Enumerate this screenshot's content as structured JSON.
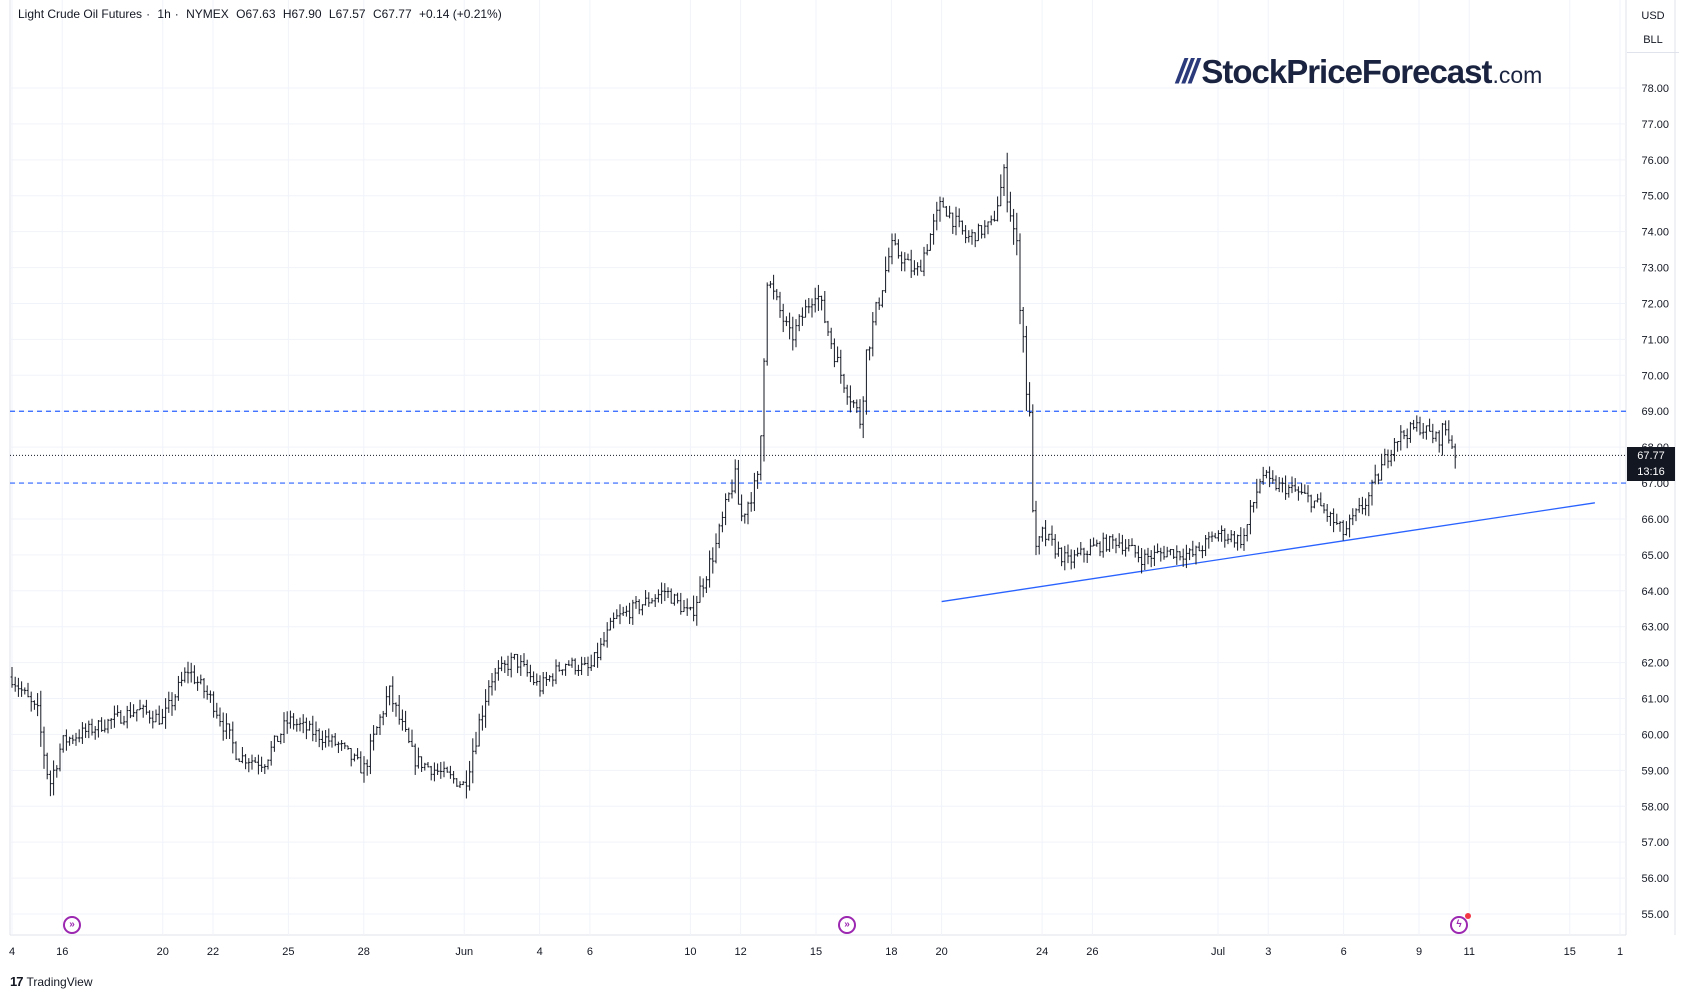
{
  "legend": {
    "symbol": "Light Crude Oil Futures",
    "interval": "1h",
    "exchange": "NYMEX",
    "open": "O67.63",
    "high": "H67.90",
    "low": "L67.57",
    "close": "C67.77",
    "change": "+0.14 (+0.21%)"
  },
  "units": {
    "currency": "USD",
    "unit": "BLL"
  },
  "logo": {
    "bars": "///",
    "name": "StockPriceForecast",
    "tld": ".com"
  },
  "current_price": {
    "value": "67.77",
    "countdown": "13:16"
  },
  "branding": {
    "icon": "tradingview-logo-icon",
    "text": "TradingView"
  },
  "events": [
    {
      "icon": "earnings-arrow-icon"
    },
    {
      "icon": "earnings-arrow-icon"
    },
    {
      "icon": "lightning-icon"
    }
  ],
  "colors": {
    "candle": "#131722",
    "level_line": "#2962ff",
    "trendline": "#2962ff",
    "grid": "#f0f3fa",
    "event": "#9c27b0"
  },
  "chart_data": {
    "type": "candlestick",
    "title": "",
    "ylabel": "",
    "ylim": [
      54.4,
      79.5
    ],
    "y_ticks": [
      "55.00",
      "56.00",
      "57.00",
      "58.00",
      "59.00",
      "60.00",
      "61.00",
      "62.00",
      "63.00",
      "64.00",
      "65.00",
      "66.00",
      "67.00",
      "68.00",
      "69.00",
      "70.00",
      "71.00",
      "72.00",
      "73.00",
      "74.00",
      "75.00",
      "76.00",
      "77.00",
      "78.00"
    ],
    "x_ticks": [
      {
        "label": "4",
        "date": "2025-05-14"
      },
      {
        "label": "16",
        "date": "2025-05-16"
      },
      {
        "label": "20",
        "date": "2025-05-20"
      },
      {
        "label": "22",
        "date": "2025-05-22"
      },
      {
        "label": "25",
        "date": "2025-05-25"
      },
      {
        "label": "28",
        "date": "2025-05-28"
      },
      {
        "label": "Jun",
        "date": "2025-06-01"
      },
      {
        "label": "4",
        "date": "2025-06-04"
      },
      {
        "label": "6",
        "date": "2025-06-06"
      },
      {
        "label": "10",
        "date": "2025-06-10"
      },
      {
        "label": "12",
        "date": "2025-06-12"
      },
      {
        "label": "15",
        "date": "2025-06-15"
      },
      {
        "label": "18",
        "date": "2025-06-18"
      },
      {
        "label": "20",
        "date": "2025-06-20"
      },
      {
        "label": "24",
        "date": "2025-06-24"
      },
      {
        "label": "26",
        "date": "2025-06-26"
      },
      {
        "label": "Jul",
        "date": "2025-07-01"
      },
      {
        "label": "3",
        "date": "2025-07-03"
      },
      {
        "label": "6",
        "date": "2025-07-06"
      },
      {
        "label": "9",
        "date": "2025-07-09"
      },
      {
        "label": "11",
        "date": "2025-07-11"
      },
      {
        "label": "15",
        "date": "2025-07-15"
      },
      {
        "label": "1",
        "date": "2025-07-17"
      }
    ],
    "price_path": [
      {
        "date": "2025-05-14",
        "value": 61.6
      },
      {
        "date": "2025-05-15",
        "value": 60.6
      },
      {
        "date": "2025-05-15T12",
        "value": 58.6
      },
      {
        "date": "2025-05-16",
        "value": 59.8
      },
      {
        "date": "2025-05-19",
        "value": 60.7
      },
      {
        "date": "2025-05-20",
        "value": 60.4
      },
      {
        "date": "2025-05-21",
        "value": 61.8
      },
      {
        "date": "2025-05-22",
        "value": 60.9
      },
      {
        "date": "2025-05-23",
        "value": 59.4
      },
      {
        "date": "2025-05-24",
        "value": 59.2
      },
      {
        "date": "2025-05-25",
        "value": 60.4
      },
      {
        "date": "2025-05-27",
        "value": 59.7
      },
      {
        "date": "2025-05-28",
        "value": 59.0
      },
      {
        "date": "2025-05-29",
        "value": 61.2
      },
      {
        "date": "2025-05-30",
        "value": 59.3
      },
      {
        "date": "2025-06-01",
        "value": 58.6
      },
      {
        "date": "2025-06-02",
        "value": 61.5
      },
      {
        "date": "2025-06-03",
        "value": 62.1
      },
      {
        "date": "2025-06-04",
        "value": 61.3
      },
      {
        "date": "2025-06-05",
        "value": 62.0
      },
      {
        "date": "2025-06-06",
        "value": 61.8
      },
      {
        "date": "2025-06-07",
        "value": 63.2
      },
      {
        "date": "2025-06-09",
        "value": 64.0
      },
      {
        "date": "2025-06-10",
        "value": 63.3
      },
      {
        "date": "2025-06-11",
        "value": 65.2
      },
      {
        "date": "2025-06-11T18",
        "value": 67.2
      },
      {
        "date": "2025-06-12",
        "value": 66.0
      },
      {
        "date": "2025-06-12T18",
        "value": 67.2
      },
      {
        "date": "2025-06-13",
        "value": 72.8
      },
      {
        "date": "2025-06-14",
        "value": 71.0
      },
      {
        "date": "2025-06-15",
        "value": 72.4
      },
      {
        "date": "2025-06-16",
        "value": 70.0
      },
      {
        "date": "2025-06-16T18",
        "value": 68.8
      },
      {
        "date": "2025-06-17",
        "value": 70.6
      },
      {
        "date": "2025-06-18",
        "value": 73.6
      },
      {
        "date": "2025-06-19",
        "value": 72.8
      },
      {
        "date": "2025-06-20",
        "value": 74.8
      },
      {
        "date": "2025-06-21",
        "value": 73.8
      },
      {
        "date": "2025-06-22",
        "value": 74.2
      },
      {
        "date": "2025-06-22T12",
        "value": 75.6
      },
      {
        "date": "2025-06-23",
        "value": 73.5
      },
      {
        "date": "2025-06-23T12",
        "value": 68.5
      },
      {
        "date": "2025-06-23T18",
        "value": 65.0
      },
      {
        "date": "2025-06-24",
        "value": 65.6
      },
      {
        "date": "2025-06-25",
        "value": 64.8
      },
      {
        "date": "2025-06-26",
        "value": 65.2
      },
      {
        "date": "2025-06-27",
        "value": 65.4
      },
      {
        "date": "2025-06-28",
        "value": 64.9
      },
      {
        "date": "2025-06-29",
        "value": 65.1
      },
      {
        "date": "2025-06-30",
        "value": 65.0
      },
      {
        "date": "2025-07-01",
        "value": 65.6
      },
      {
        "date": "2025-07-02",
        "value": 65.4
      },
      {
        "date": "2025-07-02T18",
        "value": 67.3
      },
      {
        "date": "2025-07-03",
        "value": 67.0
      },
      {
        "date": "2025-07-04",
        "value": 66.8
      },
      {
        "date": "2025-07-05",
        "value": 66.4
      },
      {
        "date": "2025-07-06",
        "value": 65.6
      },
      {
        "date": "2025-07-07",
        "value": 66.6
      },
      {
        "date": "2025-07-08",
        "value": 68.2
      },
      {
        "date": "2025-07-09",
        "value": 68.6
      },
      {
        "date": "2025-07-09T18",
        "value": 68.2
      },
      {
        "date": "2025-07-10",
        "value": 68.6
      },
      {
        "date": "2025-07-10T12",
        "value": 67.77
      }
    ],
    "horizontal_levels": [
      {
        "value": 69.0,
        "style": "dashed"
      },
      {
        "value": 67.0,
        "style": "dashed"
      },
      {
        "value": 67.77,
        "style": "dotted"
      }
    ],
    "trendline": {
      "start": {
        "date": "2025-06-20",
        "value": 63.7
      },
      "end": {
        "date": "2025-07-16",
        "value": 66.45
      }
    },
    "grid": true
  }
}
